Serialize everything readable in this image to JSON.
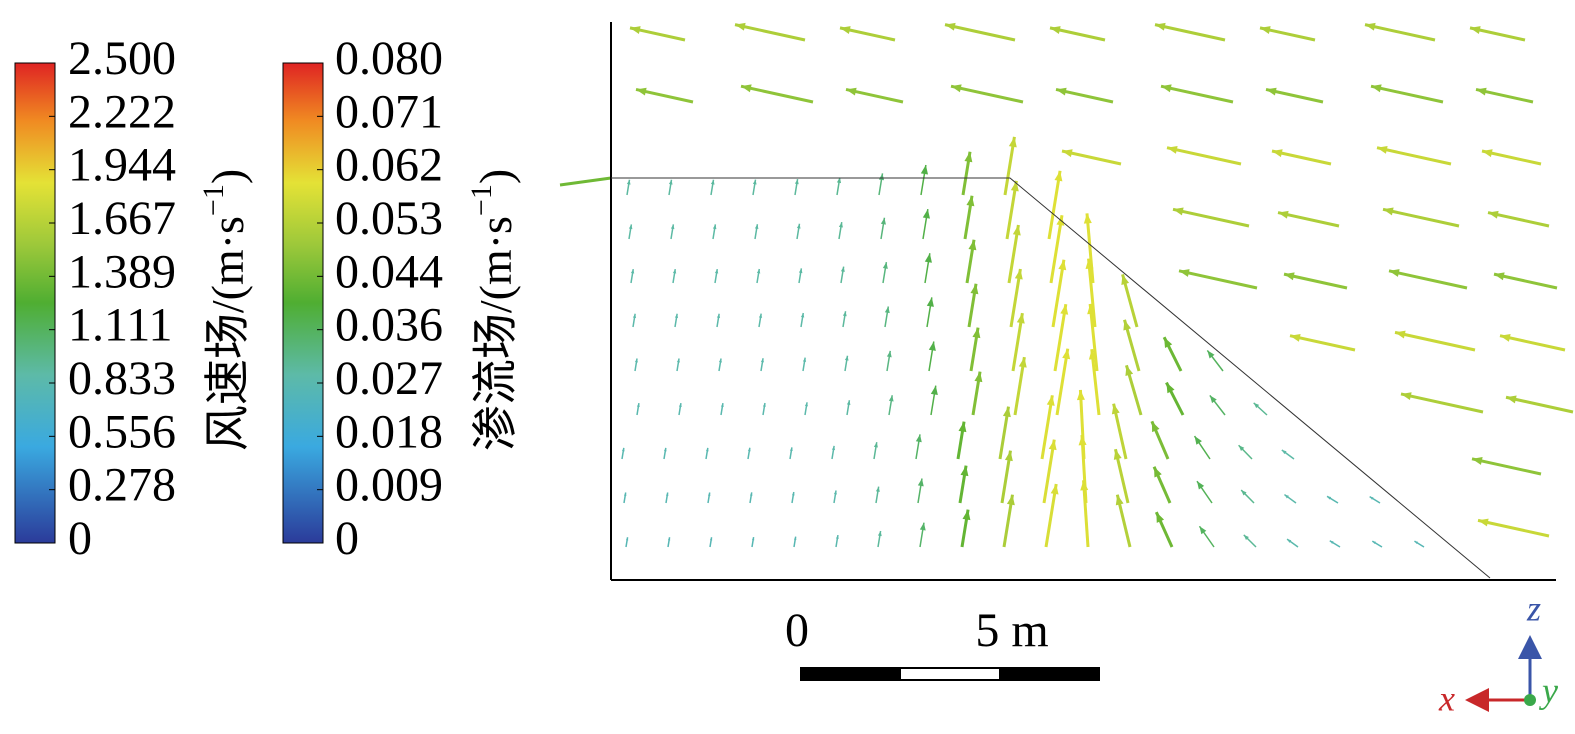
{
  "colorbars": [
    {
      "title": {
        "main": "风速场/(m·s",
        "sup": "−1",
        "end": ")"
      },
      "ticks": [
        "2.500",
        "2.222",
        "1.944",
        "1.667",
        "1.389",
        "1.111",
        "0.833",
        "0.556",
        "0.278",
        "0"
      ]
    },
    {
      "title": {
        "main": "渗流场/(m·s",
        "sup": "−1",
        "end": ")"
      },
      "ticks": [
        "0.080",
        "0.071",
        "0.062",
        "0.053",
        "0.044",
        "0.036",
        "0.027",
        "0.018",
        "0.009",
        "0"
      ]
    }
  ],
  "scale_bar": {
    "start": "0",
    "end": "5 m"
  },
  "axes": {
    "x": "x",
    "y": "y",
    "z": "z"
  }
}
